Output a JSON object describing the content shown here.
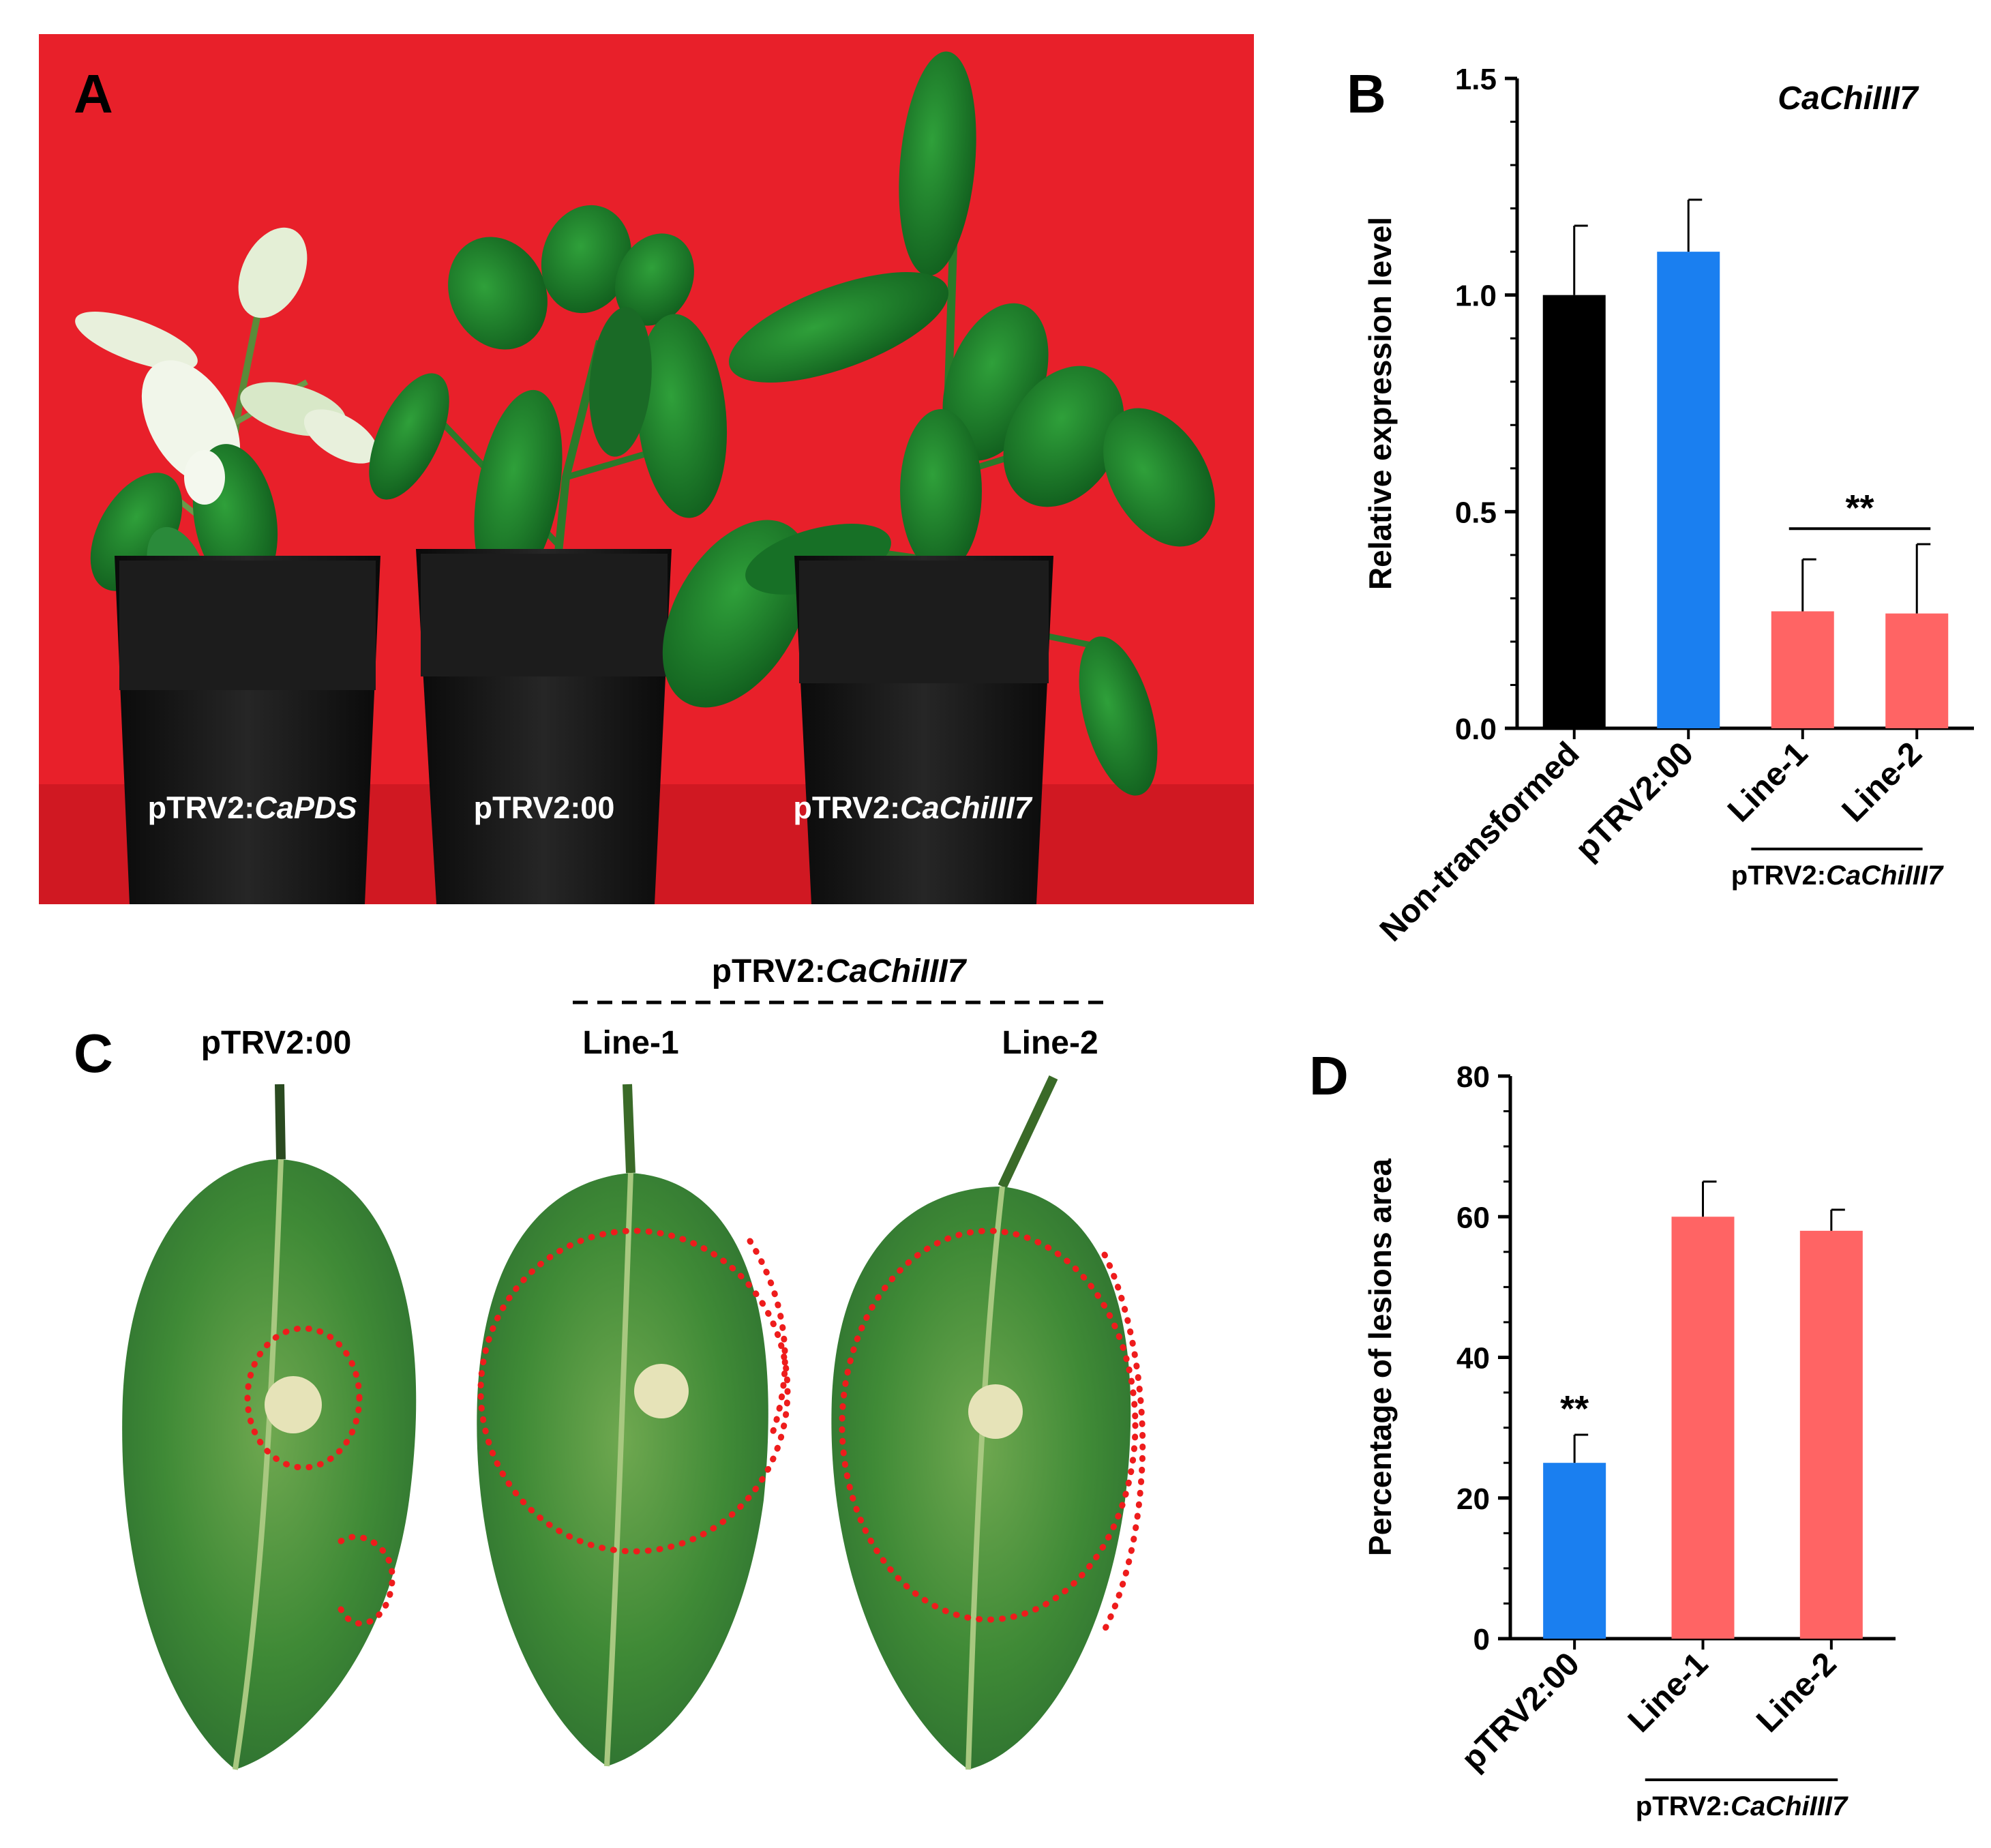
{
  "panels": {
    "A": {
      "letter": "A",
      "plants": [
        {
          "prefix": "pTRV2:",
          "gene": "CaPDS"
        },
        {
          "prefix": "pTRV2:00",
          "gene": ""
        },
        {
          "prefix": "pTRV2:",
          "gene": "CaChiIII7"
        }
      ],
      "colors": {
        "background": "#e8202a",
        "leaf": "#1e7a2a",
        "pot": "#141414"
      }
    },
    "B": {
      "letter": "B"
    },
    "C": {
      "letter": "C",
      "control_label": "pTRV2:00",
      "group_prefix": "pTRV2:",
      "group_gene": "CaChiIII7",
      "line1": "Line-1",
      "line2": "Line-2"
    },
    "D": {
      "letter": "D"
    }
  },
  "chart_data": [
    {
      "panel": "B",
      "type": "bar",
      "title": "CaChiIII7",
      "ylabel": "Relative expression level",
      "ylim": [
        0,
        1.5
      ],
      "yticks": [
        "0.0",
        "0.5",
        "1.0",
        "1.5"
      ],
      "categories": [
        "Non-transformed",
        "pTRV2:00",
        "Line-1",
        "Line-2"
      ],
      "values": [
        1.0,
        1.1,
        0.27,
        0.265
      ],
      "errors": [
        0.16,
        0.12,
        0.12,
        0.16
      ],
      "colors": [
        "#000000",
        "#1a7ff0",
        "#ff6464",
        "#ff6464"
      ],
      "significance": "**",
      "group_prefix": "pTRV2:",
      "group_gene": "CaChiIII7"
    },
    {
      "panel": "D",
      "type": "bar",
      "ylabel": "Percentage of lesions area",
      "ylim": [
        0,
        80
      ],
      "yticks": [
        "0",
        "20",
        "40",
        "60",
        "80"
      ],
      "categories": [
        "pTRV2:00",
        "Line-1",
        "Line-2"
      ],
      "values": [
        25,
        60,
        58
      ],
      "errors": [
        4,
        5,
        3
      ],
      "colors": [
        "#1a7ff0",
        "#ff6464",
        "#ff6464"
      ],
      "significance": "**",
      "group_prefix": "pTRV2:",
      "group_gene": "CaChiIII7"
    }
  ]
}
